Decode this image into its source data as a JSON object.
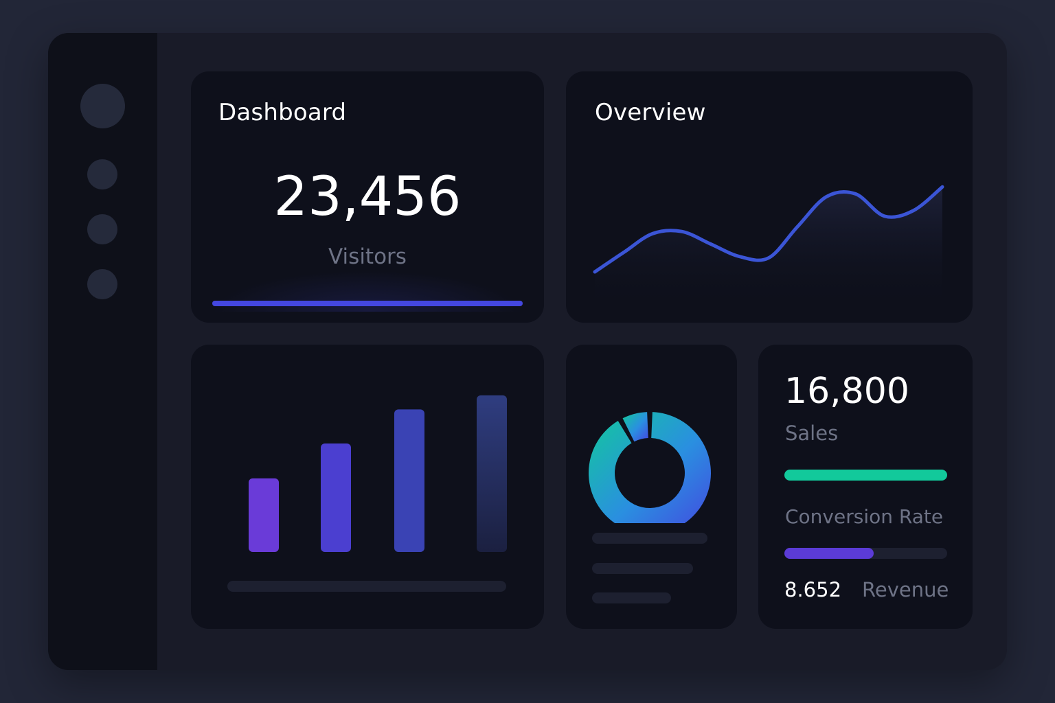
{
  "sidebar": {
    "items": [
      {
        "name": "avatar"
      },
      {
        "name": "nav-1"
      },
      {
        "name": "nav-2"
      },
      {
        "name": "nav-3"
      }
    ]
  },
  "dashboard_card": {
    "title": "Dashboard",
    "value": "23,456",
    "label": "Visitors",
    "progress": 1.0,
    "accent": "#4447e0"
  },
  "overview_card": {
    "title": "Overview",
    "line_color": "#3b55d6"
  },
  "stats_card": {
    "sales_value": "16,800",
    "sales_label": "Sales",
    "sales_progress": 1.0,
    "sales_color": "#12c99b",
    "conversion_label": "Conversion Rate",
    "conversion_progress": 0.55,
    "conversion_color": "#5b3bd6",
    "revenue_value": "8.652",
    "revenue_label": "Revenue"
  },
  "chart_data": [
    {
      "type": "line",
      "x": [
        0,
        1,
        2,
        3,
        4,
        5,
        6,
        7,
        8,
        9,
        10,
        11,
        12
      ],
      "values": [
        0,
        28,
        55,
        58,
        40,
        22,
        20,
        65,
        108,
        112,
        80,
        88,
        122
      ],
      "ylim": [
        0,
        140
      ],
      "title": "Overview"
    },
    {
      "type": "bar",
      "categories": [
        "",
        "",
        "",
        ""
      ],
      "values": [
        110,
        162,
        213,
        234
      ],
      "ylim": [
        0,
        240
      ],
      "colors": [
        "#6a3bd8",
        "#4b3fd0",
        "#3a43b4",
        "#2e3a78"
      ]
    },
    {
      "type": "pie",
      "values": [
        8,
        92
      ],
      "colors": [
        "#12c99b",
        "#3b55d6"
      ]
    }
  ]
}
